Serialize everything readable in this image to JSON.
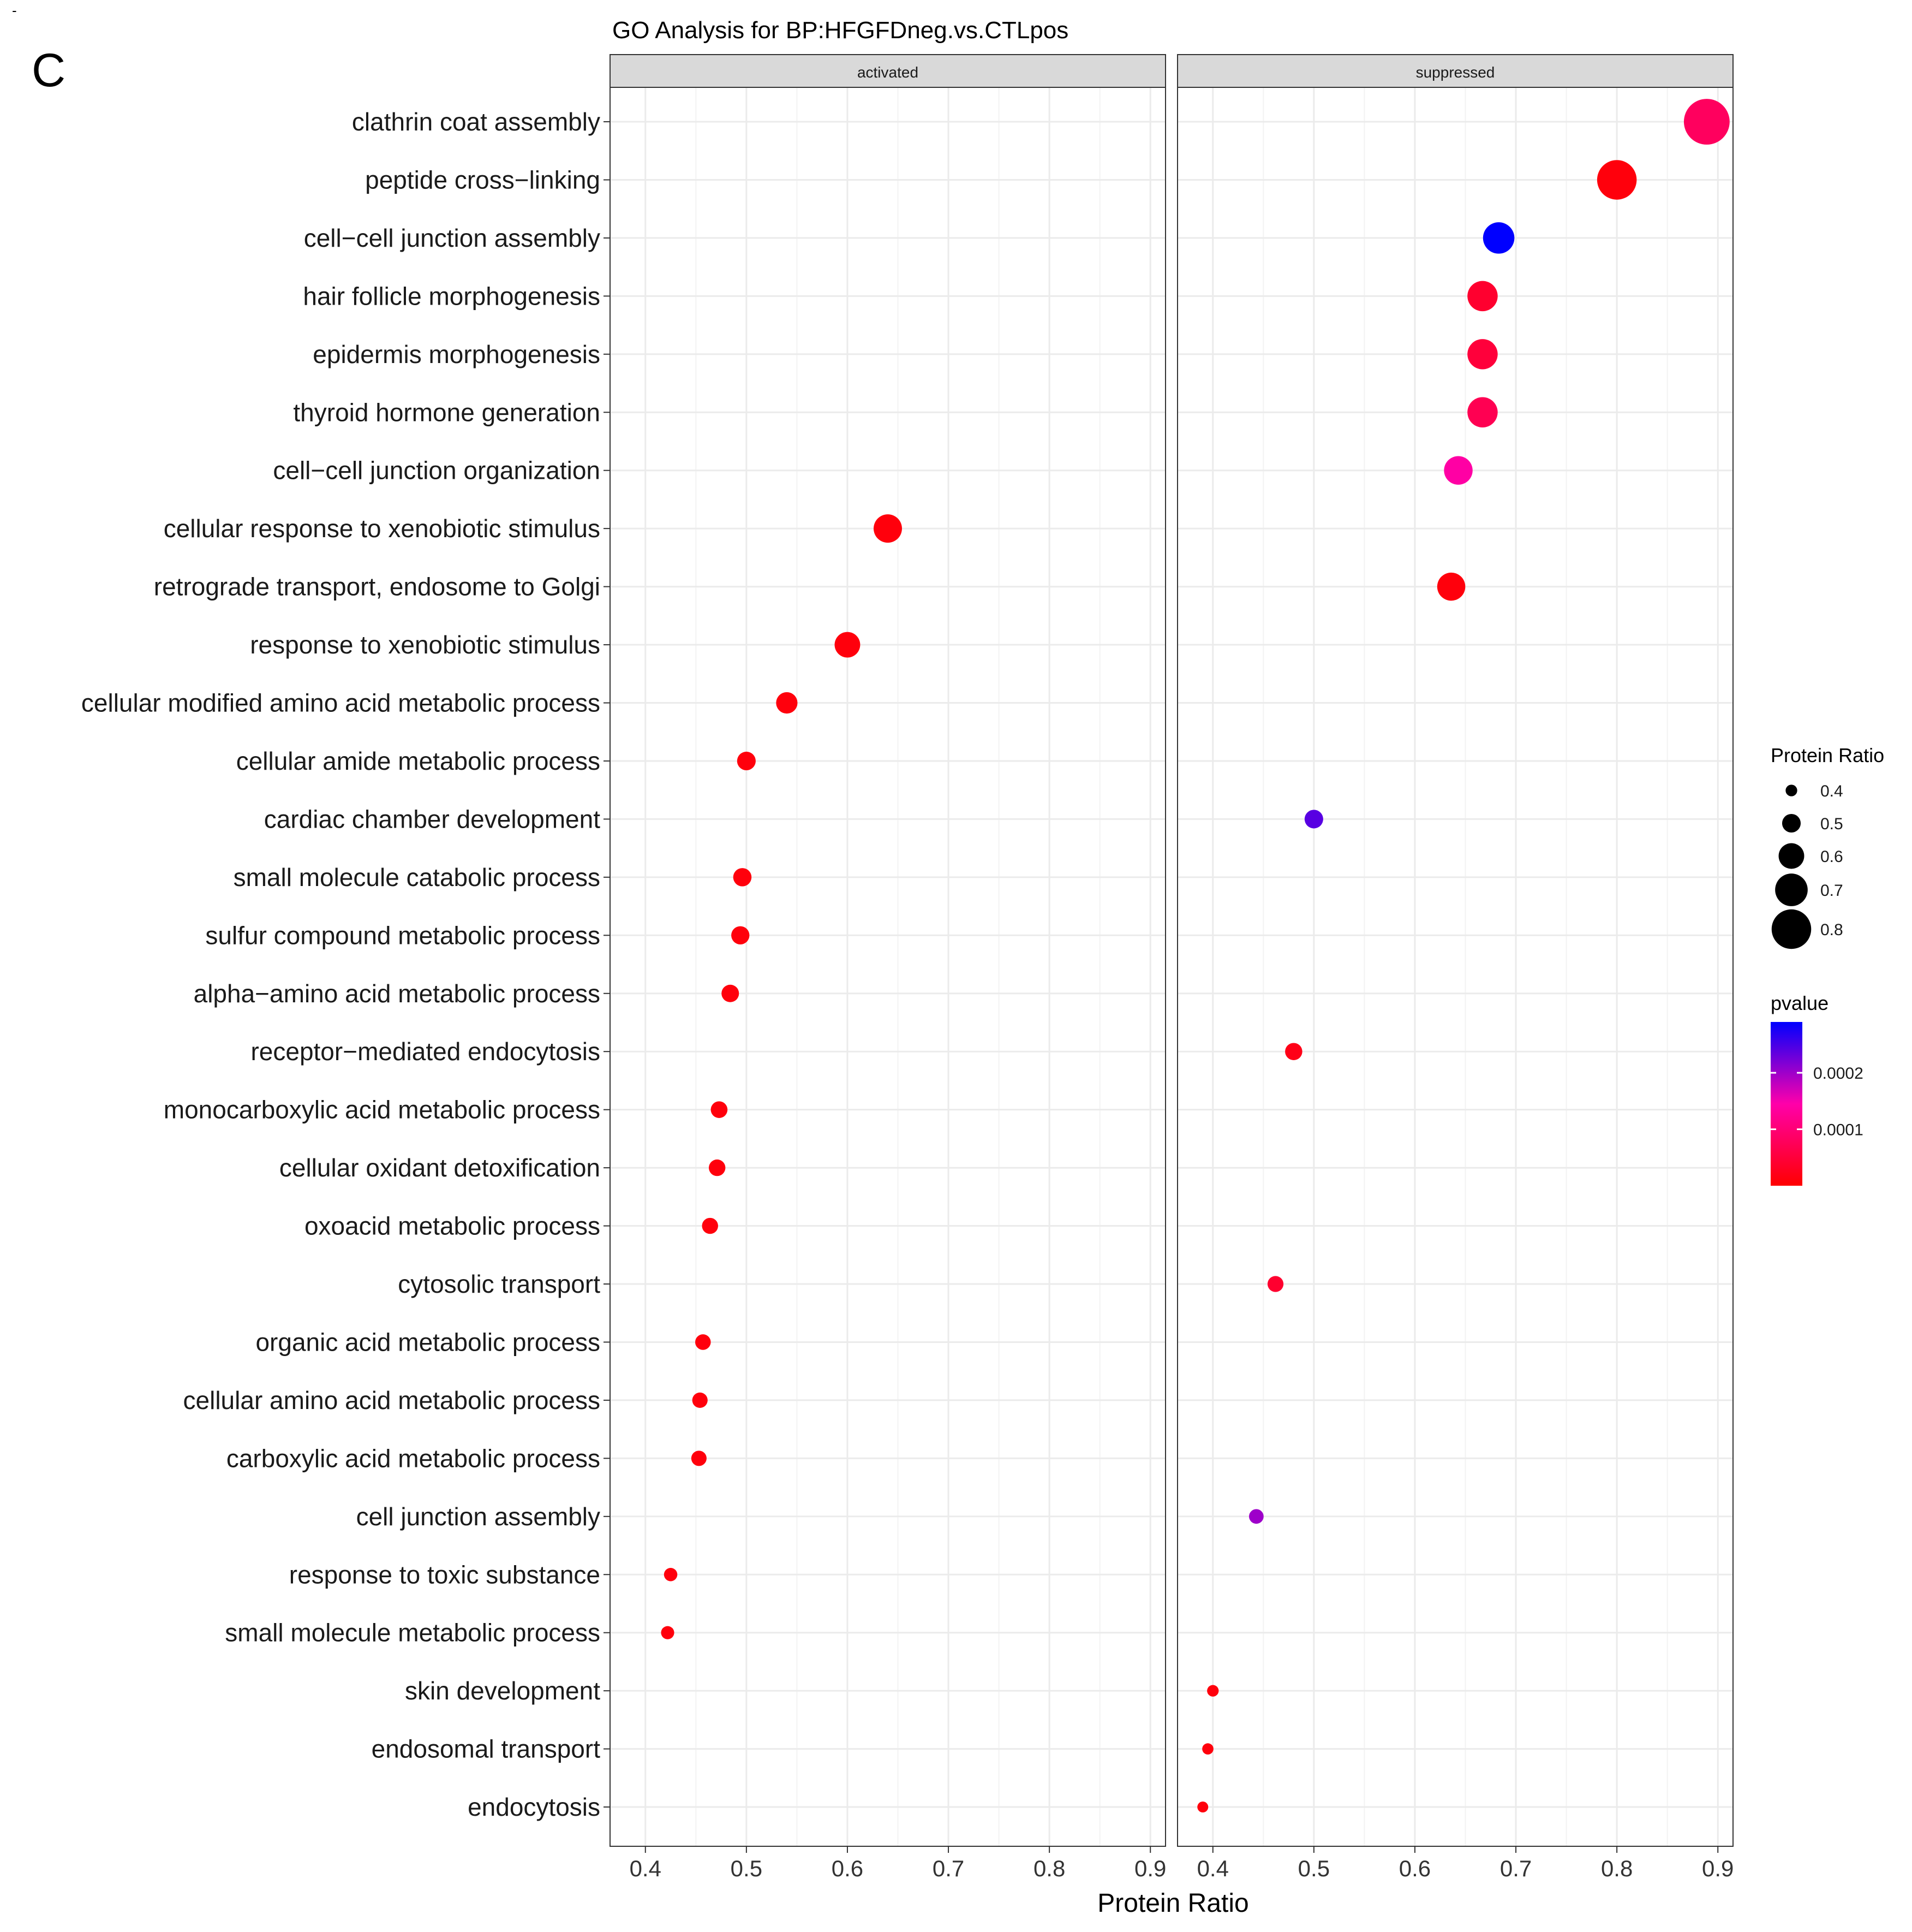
{
  "panel_letter": "C",
  "corner_mark": "-",
  "chart_data": {
    "type": "scatter",
    "title": "GO Analysis for BP:HFGFDneg.vs.CTLpos",
    "xlabel": "Protein Ratio",
    "ylabel": "",
    "xlim": [
      0.365,
      0.915
    ],
    "xticks": [
      0.4,
      0.5,
      0.6,
      0.7,
      0.8,
      0.9
    ],
    "xtick_labels": [
      "0.4",
      "0.5",
      "0.6",
      "0.7",
      "0.8",
      "0.9"
    ],
    "grid": true,
    "legend_position": "right",
    "categories": [
      "clathrin coat assembly",
      "peptide cross−linking",
      "cell−cell junction assembly",
      "hair follicle morphogenesis",
      "epidermis morphogenesis",
      "thyroid hormone generation",
      "cell−cell junction organization",
      "cellular response to xenobiotic stimulus",
      "retrograde transport, endosome to Golgi",
      "response to xenobiotic stimulus",
      "cellular modified amino acid metabolic process",
      "cellular amide metabolic process",
      "cardiac chamber development",
      "small molecule catabolic process",
      "sulfur compound metabolic process",
      "alpha−amino acid metabolic process",
      "receptor−mediated endocytosis",
      "monocarboxylic acid metabolic process",
      "cellular oxidant detoxification",
      "oxoacid metabolic process",
      "cytosolic transport",
      "organic acid metabolic process",
      "cellular amino acid metabolic process",
      "carboxylic acid metabolic process",
      "cell junction assembly",
      "response to toxic substance",
      "small molecule metabolic process",
      "skin development",
      "endosomal transport",
      "endocytosis"
    ],
    "panels": [
      {
        "label": "activated",
        "points": [
          {
            "category": "cellular response to xenobiotic stimulus",
            "x": 0.64,
            "pvalue": 1e-05
          },
          {
            "category": "response to xenobiotic stimulus",
            "x": 0.6,
            "pvalue": 1e-05
          },
          {
            "category": "cellular modified amino acid metabolic process",
            "x": 0.54,
            "pvalue": 1e-05
          },
          {
            "category": "cellular amide metabolic process",
            "x": 0.5,
            "pvalue": 1e-05
          },
          {
            "category": "small molecule catabolic process",
            "x": 0.496,
            "pvalue": 1e-05
          },
          {
            "category": "sulfur compound metabolic process",
            "x": 0.494,
            "pvalue": 1e-05
          },
          {
            "category": "alpha−amino acid metabolic process",
            "x": 0.484,
            "pvalue": 1e-05
          },
          {
            "category": "monocarboxylic acid metabolic process",
            "x": 0.473,
            "pvalue": 1e-05
          },
          {
            "category": "cellular oxidant detoxification",
            "x": 0.471,
            "pvalue": 1e-05
          },
          {
            "category": "oxoacid metabolic process",
            "x": 0.464,
            "pvalue": 1e-05
          },
          {
            "category": "organic acid metabolic process",
            "x": 0.457,
            "pvalue": 1e-05
          },
          {
            "category": "cellular amino acid metabolic process",
            "x": 0.454,
            "pvalue": 1e-05
          },
          {
            "category": "carboxylic acid metabolic process",
            "x": 0.453,
            "pvalue": 1e-05
          },
          {
            "category": "response to toxic substance",
            "x": 0.425,
            "pvalue": 1e-05
          },
          {
            "category": "small molecule metabolic process",
            "x": 0.422,
            "pvalue": 1e-05
          }
        ]
      },
      {
        "label": "suppressed",
        "points": [
          {
            "category": "clathrin coat assembly",
            "x": 0.889,
            "pvalue": 8e-05
          },
          {
            "category": "peptide cross−linking",
            "x": 0.8,
            "pvalue": 1e-05
          },
          {
            "category": "cell−cell junction assembly",
            "x": 0.683,
            "pvalue": 0.0003
          },
          {
            "category": "hair follicle morphogenesis",
            "x": 0.667,
            "pvalue": 4e-05
          },
          {
            "category": "epidermis morphogenesis",
            "x": 0.667,
            "pvalue": 5e-05
          },
          {
            "category": "thyroid hormone generation",
            "x": 0.667,
            "pvalue": 7e-05
          },
          {
            "category": "cell−cell junction organization",
            "x": 0.643,
            "pvalue": 0.00014
          },
          {
            "category": "retrograde transport, endosome to Golgi",
            "x": 0.636,
            "pvalue": 1e-05
          },
          {
            "category": "cardiac chamber development",
            "x": 0.5,
            "pvalue": 0.00024
          },
          {
            "category": "receptor−mediated endocytosis",
            "x": 0.48,
            "pvalue": 2e-05
          },
          {
            "category": "cytosolic transport",
            "x": 0.462,
            "pvalue": 4e-05
          },
          {
            "category": "cell junction assembly",
            "x": 0.443,
            "pvalue": 0.0002
          },
          {
            "category": "skin development",
            "x": 0.4,
            "pvalue": 1e-05
          },
          {
            "category": "endosomal transport",
            "x": 0.395,
            "pvalue": 1e-05
          },
          {
            "category": "endocytosis",
            "x": 0.39,
            "pvalue": 1e-05
          }
        ]
      }
    ],
    "size_legend": {
      "title": "Protein Ratio",
      "values": [
        0.4,
        0.5,
        0.6,
        0.7,
        0.8
      ],
      "labels": [
        "0.4",
        "0.5",
        "0.6",
        "0.7",
        "0.8"
      ]
    },
    "color_legend": {
      "title": "pvalue",
      "range": [
        0.0,
        0.00029
      ],
      "ticks": [
        0.0001,
        0.0002
      ],
      "tick_labels": [
        "0.0001",
        "0.0002"
      ],
      "low_color": "#ff0000",
      "high_color": "#0000ff"
    },
    "colors": {
      "strip_fill": "#d9d9d9",
      "grid": "#ebebeb",
      "panel_border": "#333333"
    }
  }
}
